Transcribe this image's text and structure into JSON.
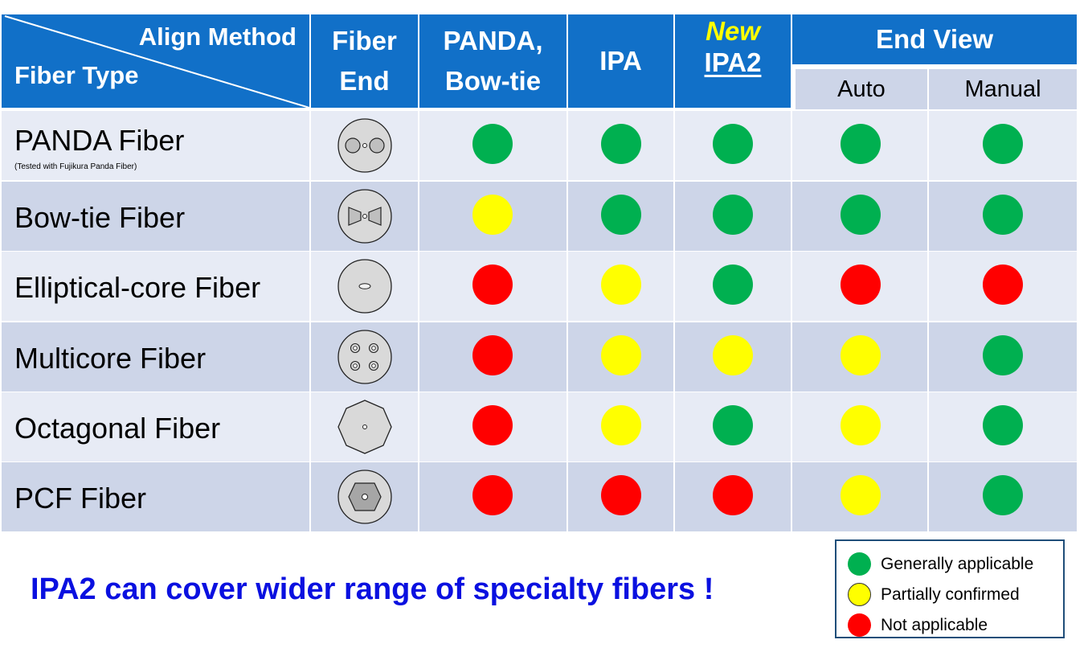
{
  "header": {
    "corner_top": "Align Method",
    "corner_bottom": "Fiber Type",
    "fiber_end_line1": "Fiber",
    "fiber_end_line2": "End",
    "panda_line1": "PANDA,",
    "panda_line2": "Bow-tie",
    "ipa": "IPA",
    "ipa2_new": "New",
    "ipa2": "IPA2",
    "end_view": "End View",
    "auto": "Auto",
    "manual": "Manual"
  },
  "colors": {
    "header_blue": "#1170c8",
    "row_light": "#e7ebf5",
    "row_dark": "#cdd5e8",
    "new_yellow": "#ffff00",
    "green": "#00b050",
    "yellow": "#ffff00",
    "red": "#ff0000",
    "slogan_blue": "#0a10e0"
  },
  "columns": [
    "PANDA, Bow-tie",
    "IPA",
    "IPA2",
    "End View Auto",
    "End View Manual"
  ],
  "rows": [
    {
      "name": "PANDA Fiber",
      "note": "(Tested with Fujikura Panda Fiber)",
      "icon": "panda-fiber-end-icon",
      "status": [
        "green",
        "green",
        "green",
        "green",
        "green"
      ]
    },
    {
      "name": "Bow-tie Fiber",
      "note": "",
      "icon": "bowtie-fiber-end-icon",
      "status": [
        "yellow",
        "green",
        "green",
        "green",
        "green"
      ]
    },
    {
      "name": "Elliptical-core Fiber",
      "note": "",
      "icon": "elliptical-core-fiber-end-icon",
      "status": [
        "red",
        "yellow",
        "green",
        "red",
        "red"
      ]
    },
    {
      "name": "Multicore Fiber",
      "note": "",
      "icon": "multicore-fiber-end-icon",
      "status": [
        "red",
        "yellow",
        "yellow",
        "yellow",
        "green"
      ]
    },
    {
      "name": "Octagonal Fiber",
      "note": "",
      "icon": "octagonal-fiber-end-icon",
      "status": [
        "red",
        "yellow",
        "green",
        "yellow",
        "green"
      ]
    },
    {
      "name": "PCF Fiber",
      "note": "",
      "icon": "pcf-fiber-end-icon",
      "status": [
        "red",
        "red",
        "red",
        "yellow",
        "green"
      ]
    }
  ],
  "slogan": "IPA2 can cover wider range of specialty fibers !",
  "legend": {
    "green": "Generally applicable",
    "yellow": "Partially confirmed",
    "red": "Not applicable"
  }
}
